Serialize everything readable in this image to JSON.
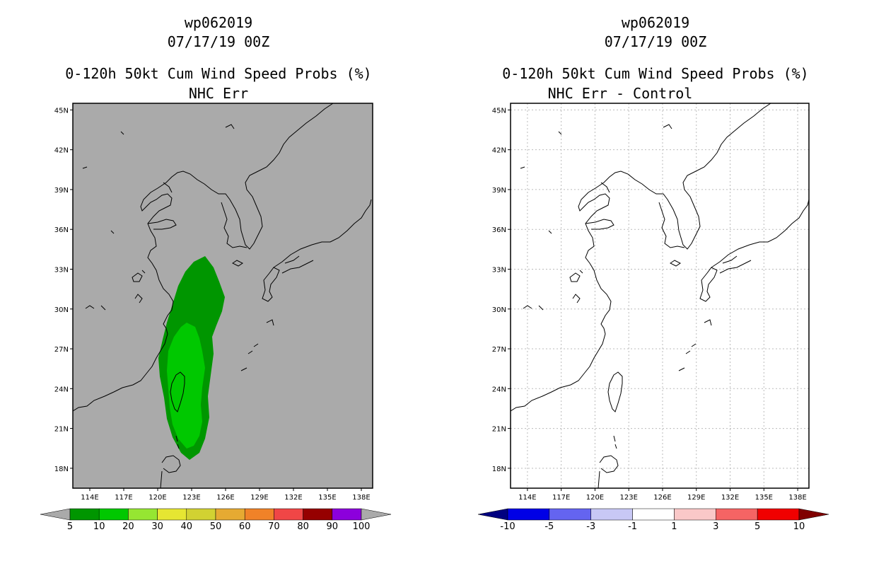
{
  "left_panel": {
    "storm_id": "wp062019",
    "datetime": "07/17/19 00Z",
    "title": "0-120h 50kt Cum Wind Speed Probs (%)",
    "subtitle": "NHC Err"
  },
  "right_panel": {
    "storm_id": "wp062019",
    "datetime": "07/17/19 00Z",
    "title": "0-120h 50kt Cum Wind Speed Probs (%)",
    "subtitle": "NHC Err - Control"
  },
  "chart_data": [
    {
      "type": "map-contour",
      "title": "0-120h 50kt Cum Wind Speed Probs (%)",
      "subtitle": "NHC Err",
      "xlabels": [
        "114E",
        "117E",
        "120E",
        "123E",
        "126E",
        "129E",
        "132E",
        "135E",
        "138E"
      ],
      "ylabels": [
        "18N",
        "21N",
        "24N",
        "27N",
        "30N",
        "33N",
        "36N",
        "39N",
        "42N",
        "45N"
      ],
      "xlim": [
        112.5,
        139
      ],
      "ylim": [
        16.5,
        45.5
      ],
      "background": "#aaaaaa",
      "legend": {
        "labels": [
          "5",
          "10",
          "20",
          "30",
          "40",
          "50",
          "60",
          "70",
          "80",
          "90",
          "100"
        ],
        "colors": [
          "#009600",
          "#00c800",
          "#96e632",
          "#e6e632",
          "#d2d232",
          "#e6aa32",
          "#f08228",
          "#f04646",
          "#960000",
          "#8c00dc"
        ],
        "end_low": "#aaaaaa",
        "end_high": "#aaaaaa"
      },
      "contours": [
        {
          "level": "5-10",
          "color": "#009600"
        },
        {
          "level": "10-20",
          "color": "#00c800"
        }
      ]
    },
    {
      "type": "map-contour",
      "title": "0-120h 50kt Cum Wind Speed Probs (%)",
      "subtitle": "NHC Err - Control",
      "xlabels": [
        "114E",
        "117E",
        "120E",
        "123E",
        "126E",
        "129E",
        "132E",
        "135E",
        "138E"
      ],
      "ylabels": [
        "18N",
        "21N",
        "24N",
        "27N",
        "30N",
        "33N",
        "36N",
        "39N",
        "42N",
        "45N"
      ],
      "xlim": [
        112.5,
        139
      ],
      "ylim": [
        16.5,
        45.5
      ],
      "background": "#ffffff",
      "grid": true,
      "legend": {
        "labels": [
          "-10",
          "-5",
          "-3",
          "-1",
          "1",
          "3",
          "5",
          "10"
        ],
        "colors": [
          "#0000e6",
          "#6464f0",
          "#c8c8f5",
          "#ffffff",
          "#fac8c8",
          "#f56464",
          "#f00000"
        ],
        "end_low": "#000080",
        "end_high": "#800000"
      },
      "contours": []
    }
  ]
}
